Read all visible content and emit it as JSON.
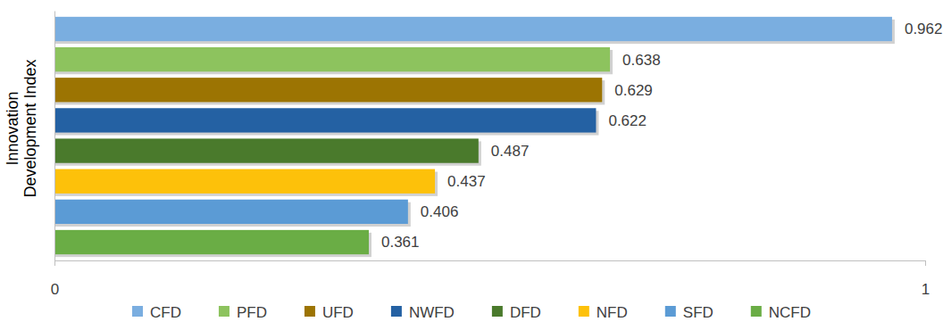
{
  "chart_data": {
    "type": "bar",
    "orientation": "horizontal",
    "y_label": "Innovation Development Index",
    "categories": [
      "CFD",
      "PFD",
      "UFD",
      "NWFD",
      "DFD",
      "NFD",
      "SFD",
      "NCFD"
    ],
    "values": [
      0.962,
      0.638,
      0.629,
      0.622,
      0.487,
      0.437,
      0.406,
      0.361
    ],
    "colors": [
      "#7aaee0",
      "#8dc35e",
      "#9c7402",
      "#2461a3",
      "#4a7a2c",
      "#fdc10a",
      "#5b9bd5",
      "#6aad45"
    ],
    "xlim": [
      0,
      1
    ],
    "xticks": [
      0,
      1
    ],
    "data_labels": true,
    "tick_labels": "x",
    "legend": "bottom",
    "grid": false
  }
}
